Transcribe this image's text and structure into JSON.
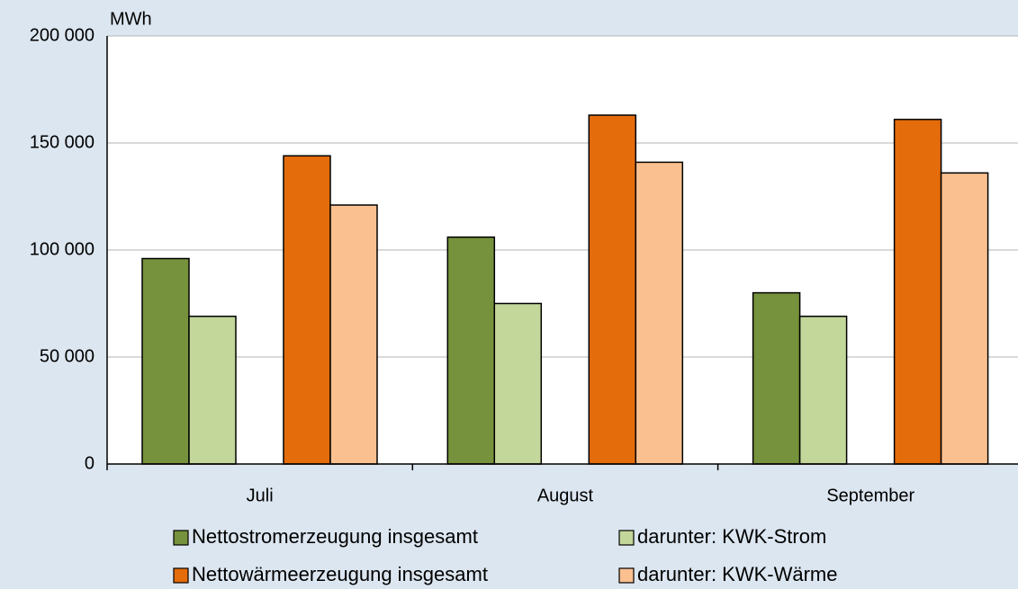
{
  "chart_data": {
    "type": "bar",
    "y_label": "MWh",
    "categories": [
      "Juli",
      "August",
      "September"
    ],
    "series": [
      {
        "name": "Nettostromerzeugung insgesamt",
        "color": "#76923c",
        "values": [
          96000,
          106000,
          80000
        ]
      },
      {
        "name": "darunter: KWK-Strom",
        "color": "#c4d79b",
        "values": [
          69000,
          75000,
          69000
        ]
      },
      {
        "name": "Nettowärmeerzeugung insgesamt",
        "color": "#e46c0a",
        "values": [
          144000,
          163000,
          161000
        ]
      },
      {
        "name": "darunter: KWK-Wärme",
        "color": "#fac090",
        "values": [
          121000,
          141000,
          136000
        ]
      }
    ],
    "ylim": [
      0,
      200000
    ],
    "yticks": [
      0,
      {
        "value": 50000,
        "label": "50 000"
      },
      {
        "value": 100000,
        "label": "100 000"
      },
      {
        "value": 150000,
        "label": "150 000"
      },
      {
        "value": 200000,
        "label": "200 000"
      }
    ],
    "grid": true
  }
}
